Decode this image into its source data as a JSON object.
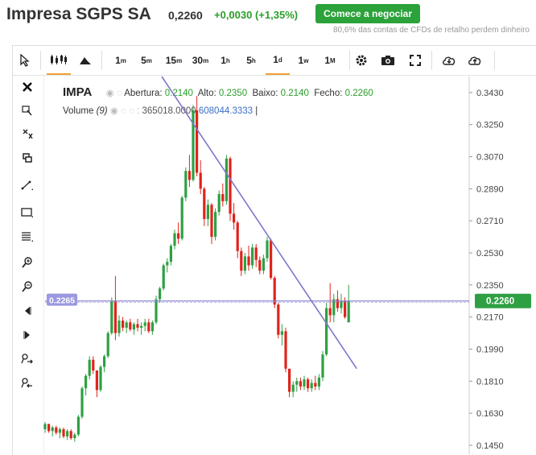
{
  "header": {
    "title": "Impresa SGPS SA",
    "price": "0,2260",
    "change": "+0,0030 (+1,35%)",
    "cta_label": "Comece a negociar",
    "disclaimer": "80,6% das contas de CFDs de retalho perdem dinheiro"
  },
  "toolbar": {
    "intervals": [
      "1m",
      "5m",
      "15m",
      "30m",
      "1h",
      "5h",
      "1d",
      "1w",
      "1M"
    ],
    "active_interval": "1d"
  },
  "legend": {
    "symbol": "IMPA",
    "open_label": "Abertura:",
    "open": "0.2140",
    "high_label": "Alto:",
    "high": "0.2350",
    "low_label": "Baixo:",
    "low": "0.2140",
    "close_label": "Fecho:",
    "close": "0.2260",
    "volume_label": "Volume",
    "volume_period": "(9)",
    "volume_value1": "365018.0000",
    "volume_value2": "608044.3333"
  },
  "colors": {
    "up": "#2ea043",
    "down": "#e0231c",
    "trendline": "#7b78c8",
    "hline": "#8a86d0",
    "price_label": "#2ea043",
    "crosshair_label": "#9a98e0"
  },
  "chart_data": {
    "type": "candlestick",
    "ylim": [
      0.14,
      0.352
    ],
    "y_ticks": [
      "0.3430",
      "0.3250",
      "0.3070",
      "0.2890",
      "0.2710",
      "0.2530",
      "0.2350",
      "0.2170",
      "0.1990",
      "0.1810",
      "0.1630",
      "0.1450"
    ],
    "last_price": "0.2260",
    "crosshair_price": "0.2265",
    "candles": [
      [
        0.154,
        0.158,
        0.152,
        0.157
      ],
      [
        0.157,
        0.157,
        0.152,
        0.153
      ],
      [
        0.153,
        0.156,
        0.15,
        0.155
      ],
      [
        0.155,
        0.156,
        0.151,
        0.152
      ],
      [
        0.152,
        0.155,
        0.149,
        0.154
      ],
      [
        0.154,
        0.155,
        0.149,
        0.15
      ],
      [
        0.15,
        0.154,
        0.148,
        0.153
      ],
      [
        0.153,
        0.154,
        0.148,
        0.149
      ],
      [
        0.149,
        0.152,
        0.147,
        0.151
      ],
      [
        0.151,
        0.162,
        0.15,
        0.161
      ],
      [
        0.161,
        0.178,
        0.16,
        0.177
      ],
      [
        0.177,
        0.185,
        0.173,
        0.184
      ],
      [
        0.184,
        0.195,
        0.182,
        0.193
      ],
      [
        0.193,
        0.195,
        0.185,
        0.187
      ],
      [
        0.187,
        0.186,
        0.172,
        0.176
      ],
      [
        0.176,
        0.19,
        0.175,
        0.189
      ],
      [
        0.189,
        0.196,
        0.186,
        0.195
      ],
      [
        0.195,
        0.209,
        0.194,
        0.208
      ],
      [
        0.208,
        0.228,
        0.207,
        0.226
      ],
      [
        0.226,
        0.24,
        0.204,
        0.208
      ],
      [
        0.208,
        0.218,
        0.206,
        0.215
      ],
      [
        0.215,
        0.217,
        0.209,
        0.211
      ],
      [
        0.211,
        0.215,
        0.208,
        0.214
      ],
      [
        0.214,
        0.216,
        0.209,
        0.21
      ],
      [
        0.21,
        0.214,
        0.207,
        0.213
      ],
      [
        0.213,
        0.216,
        0.209,
        0.211
      ],
      [
        0.211,
        0.214,
        0.207,
        0.212
      ],
      [
        0.212,
        0.216,
        0.209,
        0.214
      ],
      [
        0.214,
        0.216,
        0.208,
        0.209
      ],
      [
        0.209,
        0.215,
        0.207,
        0.214
      ],
      [
        0.214,
        0.229,
        0.213,
        0.227
      ],
      [
        0.227,
        0.234,
        0.225,
        0.233
      ],
      [
        0.233,
        0.247,
        0.232,
        0.246
      ],
      [
        0.246,
        0.25,
        0.242,
        0.248
      ],
      [
        0.248,
        0.258,
        0.246,
        0.257
      ],
      [
        0.257,
        0.266,
        0.255,
        0.264
      ],
      [
        0.264,
        0.27,
        0.258,
        0.261
      ],
      [
        0.261,
        0.285,
        0.26,
        0.284
      ],
      [
        0.284,
        0.301,
        0.282,
        0.299
      ],
      [
        0.299,
        0.308,
        0.29,
        0.294
      ],
      [
        0.294,
        0.336,
        0.293,
        0.333
      ],
      [
        0.333,
        0.341,
        0.296,
        0.298
      ],
      [
        0.298,
        0.305,
        0.286,
        0.289
      ],
      [
        0.289,
        0.29,
        0.268,
        0.272
      ],
      [
        0.272,
        0.283,
        0.268,
        0.28
      ],
      [
        0.28,
        0.281,
        0.258,
        0.262
      ],
      [
        0.262,
        0.278,
        0.26,
        0.276
      ],
      [
        0.276,
        0.288,
        0.274,
        0.286
      ],
      [
        0.286,
        0.292,
        0.279,
        0.282
      ],
      [
        0.282,
        0.308,
        0.28,
        0.306
      ],
      [
        0.306,
        0.307,
        0.271,
        0.275
      ],
      [
        0.275,
        0.281,
        0.266,
        0.27
      ],
      [
        0.27,
        0.271,
        0.25,
        0.254
      ],
      [
        0.254,
        0.256,
        0.24,
        0.243
      ],
      [
        0.243,
        0.253,
        0.241,
        0.251
      ],
      [
        0.251,
        0.257,
        0.243,
        0.246
      ],
      [
        0.246,
        0.258,
        0.244,
        0.256
      ],
      [
        0.256,
        0.258,
        0.245,
        0.249
      ],
      [
        0.249,
        0.251,
        0.241,
        0.243
      ],
      [
        0.243,
        0.252,
        0.241,
        0.25
      ],
      [
        0.25,
        0.262,
        0.248,
        0.26
      ],
      [
        0.26,
        0.261,
        0.238,
        0.239
      ],
      [
        0.239,
        0.24,
        0.222,
        0.224
      ],
      [
        0.224,
        0.225,
        0.205,
        0.207
      ],
      [
        0.207,
        0.213,
        0.201,
        0.209
      ],
      [
        0.209,
        0.211,
        0.186,
        0.188
      ],
      [
        0.188,
        0.186,
        0.172,
        0.175
      ],
      [
        0.175,
        0.181,
        0.172,
        0.179
      ],
      [
        0.179,
        0.183,
        0.175,
        0.181
      ],
      [
        0.181,
        0.183,
        0.176,
        0.178
      ],
      [
        0.178,
        0.184,
        0.176,
        0.182
      ],
      [
        0.182,
        0.183,
        0.175,
        0.177
      ],
      [
        0.177,
        0.182,
        0.175,
        0.18
      ],
      [
        0.18,
        0.184,
        0.176,
        0.178
      ],
      [
        0.178,
        0.185,
        0.176,
        0.183
      ],
      [
        0.183,
        0.198,
        0.181,
        0.196
      ],
      [
        0.196,
        0.225,
        0.195,
        0.222
      ],
      [
        0.222,
        0.236,
        0.214,
        0.218
      ],
      [
        0.218,
        0.23,
        0.214,
        0.227
      ],
      [
        0.227,
        0.232,
        0.22,
        0.222
      ],
      [
        0.222,
        0.23,
        0.219,
        0.226
      ],
      [
        0.226,
        0.228,
        0.216,
        0.217
      ],
      [
        0.214,
        0.235,
        0.214,
        0.226
      ]
    ],
    "trendline": [
      [
        0.352,
        0
      ],
      [
        0.188,
        82
      ]
    ]
  }
}
